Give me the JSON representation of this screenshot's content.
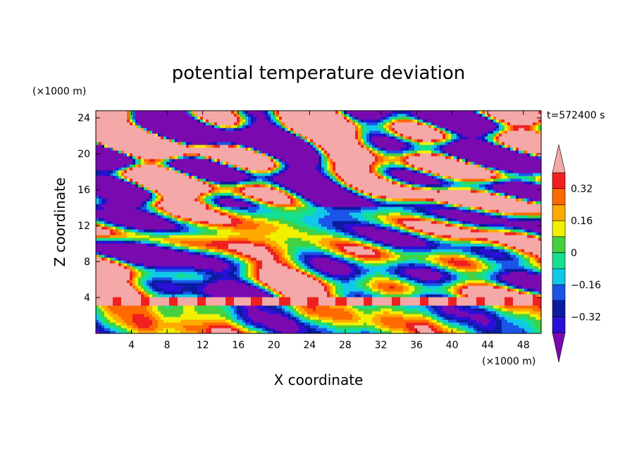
{
  "chart_data": {
    "type": "heatmap",
    "title": "potential temperature deviation",
    "xlabel": "X coordinate",
    "ylabel": "Z coordinate",
    "x_unit": "(×1000 m)",
    "y_unit": "(×1000 m)",
    "time_label": "t=572400 s",
    "xlim": [
      0,
      50
    ],
    "ylim": [
      0,
      24.8
    ],
    "x_ticks": [
      4,
      8,
      12,
      16,
      20,
      24,
      28,
      32,
      36,
      40,
      44,
      48
    ],
    "y_ticks": [
      4,
      8,
      12,
      16,
      20,
      24
    ],
    "colorbar": {
      "levels": [
        -0.4,
        -0.32,
        -0.24,
        -0.16,
        -0.08,
        0,
        0.08,
        0.16,
        0.24,
        0.32,
        0.4
      ],
      "labels": [
        "0.32",
        "0.16",
        "0",
        "−0.16",
        "−0.32"
      ],
      "label_values": [
        0.32,
        0.16,
        0,
        -0.16,
        -0.32
      ],
      "colors": [
        "#2a0fd8",
        "#0c1c9e",
        "#1a55e8",
        "#10c8e8",
        "#14e090",
        "#46d040",
        "#f0f000",
        "#ffaa00",
        "#ff6a00",
        "#f02020"
      ],
      "under_color": "#7a0ab0",
      "over_color": "#f5a8a8",
      "extend": "both"
    }
  }
}
